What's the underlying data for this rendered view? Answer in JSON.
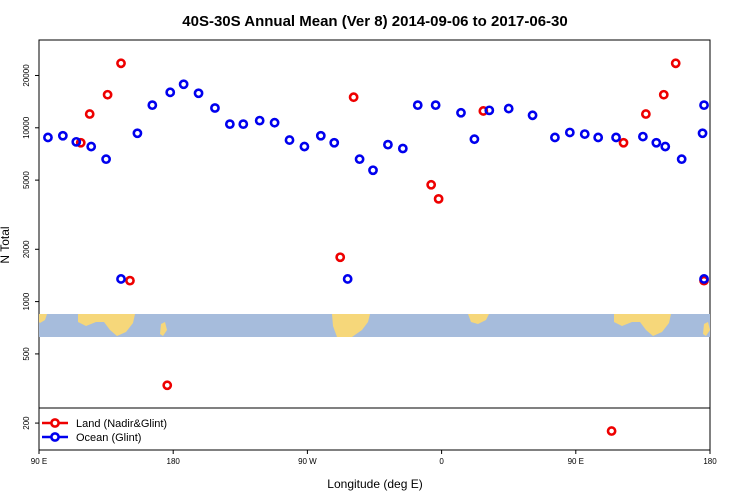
{
  "chart_data": {
    "type": "scatter",
    "title": "40S-30S Annual Mean (Ver 8)   2014-09-06 to 2017-06-30",
    "xlabel": "Longitude (deg E)",
    "ylabel": "N Total",
    "x_scale": "linear",
    "y_scale": "log",
    "xlim": [
      90,
      540
    ],
    "ylim": [
      140,
      32000
    ],
    "x_ticks": [
      {
        "value": 90,
        "label": "90 E"
      },
      {
        "value": 180,
        "label": "180"
      },
      {
        "value": 270,
        "label": "90 W"
      },
      {
        "value": 360,
        "label": "0"
      },
      {
        "value": 450,
        "label": "90 E"
      },
      {
        "value": 540,
        "label": "180"
      }
    ],
    "y_ticks": [
      {
        "value": 200,
        "label": "200"
      },
      {
        "value": 500,
        "label": "500"
      },
      {
        "value": 1000,
        "label": "1000"
      },
      {
        "value": 2000,
        "label": "2000"
      },
      {
        "value": 5000,
        "label": "5000"
      },
      {
        "value": 10000,
        "label": "10000"
      },
      {
        "value": 20000,
        "label": "20000"
      }
    ],
    "legend_position": "bottom-left",
    "series": [
      {
        "name": "Land (Nadir&Glint)",
        "color": "#ee0000",
        "x": [
          118,
          124,
          136,
          145,
          151,
          176,
          292,
          301,
          353,
          358,
          388,
          474,
          482,
          497,
          509,
          517,
          536
        ],
        "y": [
          8200,
          12000,
          15500,
          23500,
          1320,
          330,
          1800,
          15000,
          4700,
          3900,
          12500,
          180,
          8200,
          12000,
          15500,
          23500,
          1320
        ]
      },
      {
        "name": "Ocean (Glint)",
        "color": "#0000ee",
        "x": [
          96,
          106,
          115,
          125,
          135,
          145,
          156,
          166,
          178,
          187,
          197,
          208,
          218,
          227,
          238,
          248,
          258,
          268,
          279,
          288,
          297,
          305,
          314,
          324,
          334,
          344,
          356,
          373,
          382,
          392,
          405,
          421,
          436,
          446,
          456,
          465,
          477,
          495,
          504,
          510,
          521,
          536,
          535,
          536
        ],
        "y": [
          8800,
          9000,
          8300,
          7800,
          6600,
          1350,
          9300,
          13500,
          16000,
          17800,
          15800,
          13000,
          10500,
          10500,
          11000,
          10700,
          8500,
          7800,
          9000,
          8200,
          1350,
          6600,
          5700,
          8000,
          7600,
          13500,
          13500,
          12200,
          8600,
          12600,
          12900,
          11800,
          8800,
          9400,
          9200,
          8800,
          8800,
          8900,
          8200,
          7800,
          6600,
          1350,
          9300,
          13500
        ]
      }
    ]
  }
}
